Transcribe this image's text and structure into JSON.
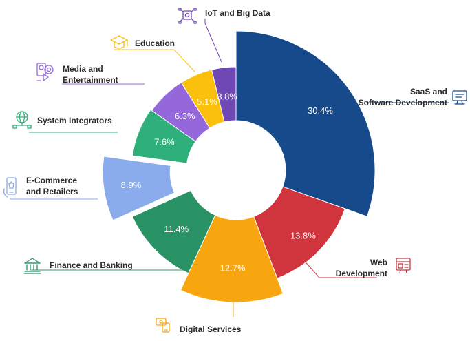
{
  "chart_data": {
    "type": "pie",
    "variant": "exploded-donut",
    "title": "",
    "categories": [
      "SaaS and Software Development",
      "Web Development",
      "Digital Services",
      "Finance and Banking",
      "E-Commerce and Retailers",
      "System Integrators",
      "Media and Entertainment",
      "Education",
      "IoT and Big Data"
    ],
    "values": [
      30.4,
      13.8,
      12.7,
      11.4,
      8.9,
      7.6,
      6.3,
      5.1,
      3.8
    ],
    "value_labels": [
      "30.4%",
      "13.8%",
      "12.7%",
      "11.4%",
      "8.9%",
      "7.6%",
      "6.3%",
      "5.1%",
      "3.8%"
    ],
    "label_lines": [
      [
        "SaaS and",
        "Software Development"
      ],
      [
        "Web",
        "Development"
      ],
      [
        "Digital Services"
      ],
      [
        "Finance and Banking"
      ],
      [
        "E-Commerce",
        "and Retailers"
      ],
      [
        "System Integrators"
      ],
      [
        "Media and",
        "Entertainment"
      ],
      [
        "Education"
      ],
      [
        "IoT and Big Data"
      ]
    ],
    "colors": [
      "#174a8b",
      "#d0353d",
      "#f7a60f",
      "#2a9366",
      "#8aacec",
      "#2fb07a",
      "#9467da",
      "#fbc00e",
      "#7048b6"
    ],
    "icons": [
      "monitor-icon",
      "web-window-icon",
      "digital-devices-icon",
      "bank-icon",
      "mobile-shop-icon",
      "globe-network-icon",
      "media-icon",
      "graduation-cap-icon",
      "iot-icon"
    ]
  }
}
